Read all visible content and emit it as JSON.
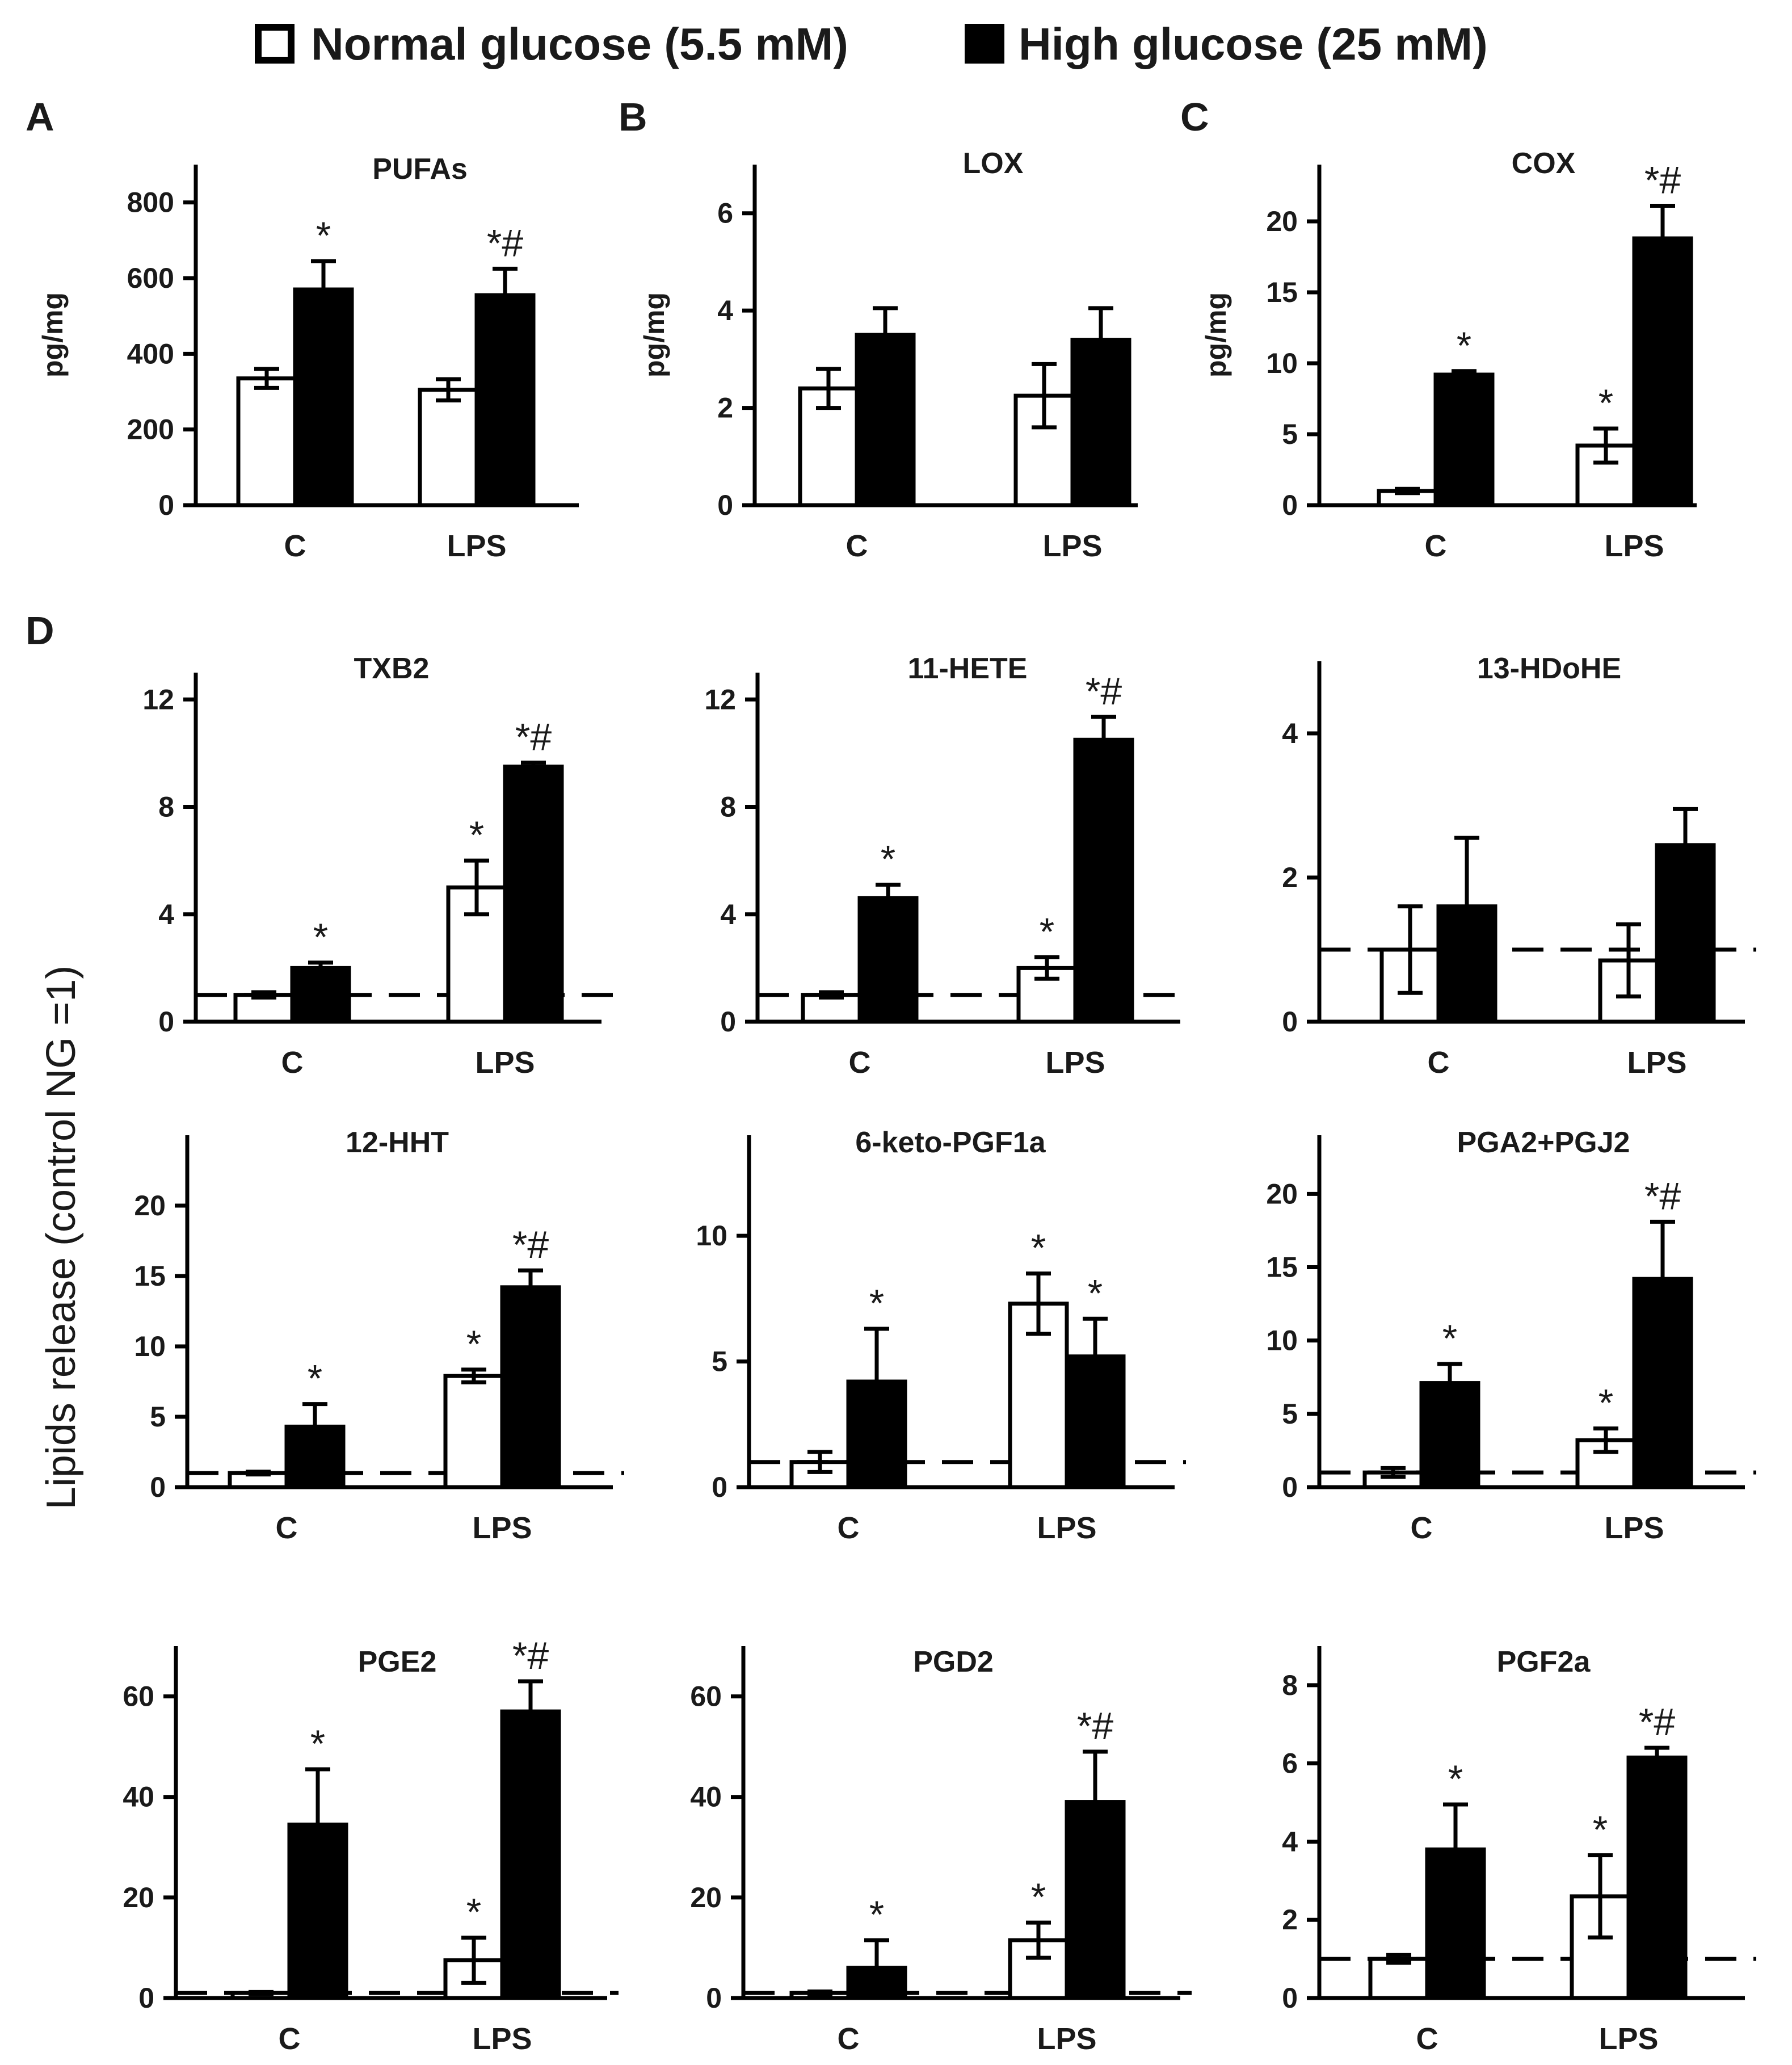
{
  "legend": {
    "normal_label": "Normal glucose (5.5 mM)",
    "high_label": "High glucose (25 mM)"
  },
  "colors": {
    "normal_fill": "#ffffff",
    "high_fill": "#000000",
    "stroke": "#000000"
  },
  "d_ylabel": "Lipids release (control NG =1)",
  "chart_data": [
    {
      "panel": "A",
      "type": "bar",
      "title": "PUFAs",
      "ylabel": "pg/mg",
      "ylim": [
        0,
        900
      ],
      "yticks": [
        0,
        200,
        400,
        600,
        800
      ],
      "baseline": null,
      "categories": [
        "C",
        "LPS"
      ],
      "series": [
        {
          "name": "Normal glucose (5.5 mM)",
          "values": [
            335,
            305
          ],
          "errors": [
            25,
            28
          ]
        },
        {
          "name": "High glucose (25 mM)",
          "values": [
            570,
            555
          ],
          "errors": [
            75,
            70
          ]
        }
      ],
      "annotations": [
        {
          "category": 0,
          "series": 1,
          "text": "*"
        },
        {
          "category": 1,
          "series": 1,
          "text": "*#"
        }
      ]
    },
    {
      "panel": "B",
      "type": "bar",
      "title": "LOX",
      "ylabel": "pg/mg",
      "ylim": [
        0,
        7
      ],
      "yticks": [
        0,
        2,
        4,
        6
      ],
      "baseline": null,
      "categories": [
        "C",
        "LPS"
      ],
      "series": [
        {
          "name": "Normal glucose (5.5 mM)",
          "values": [
            2.4,
            2.25
          ],
          "errors": [
            0.4,
            0.65
          ]
        },
        {
          "name": "High glucose (25 mM)",
          "values": [
            3.5,
            3.4
          ],
          "errors": [
            0.55,
            0.65
          ]
        }
      ],
      "annotations": []
    },
    {
      "panel": "C",
      "type": "bar",
      "title": "COX",
      "ylabel": "pg/mg",
      "ylim": [
        0,
        24
      ],
      "yticks": [
        0,
        5,
        10,
        15,
        20
      ],
      "baseline": null,
      "categories": [
        "C",
        "LPS"
      ],
      "series": [
        {
          "name": "Normal glucose (5.5 mM)",
          "values": [
            1.0,
            4.2
          ],
          "errors": [
            0.15,
            1.2
          ]
        },
        {
          "name": "High glucose (25 mM)",
          "values": [
            9.2,
            18.8
          ],
          "errors": [
            0.25,
            2.3
          ]
        }
      ],
      "annotations": [
        {
          "category": 0,
          "series": 1,
          "text": "*"
        },
        {
          "category": 1,
          "series": 0,
          "text": "*"
        },
        {
          "category": 1,
          "series": 1,
          "text": "*#"
        }
      ]
    },
    {
      "panel": "D",
      "type": "bar",
      "title": "TXB2",
      "ylabel": "",
      "ylim": [
        0,
        13
      ],
      "yticks": [
        0,
        4,
        8,
        12
      ],
      "baseline": 1,
      "categories": [
        "C",
        "LPS"
      ],
      "series": [
        {
          "name": "Normal glucose (5.5 mM)",
          "values": [
            1.0,
            5.0
          ],
          "errors": [
            0.1,
            1.0
          ]
        },
        {
          "name": "High glucose (25 mM)",
          "values": [
            2.0,
            9.5
          ],
          "errors": [
            0.2,
            0.15
          ]
        }
      ],
      "annotations": [
        {
          "category": 0,
          "series": 1,
          "text": "*"
        },
        {
          "category": 1,
          "series": 0,
          "text": "*"
        },
        {
          "category": 1,
          "series": 1,
          "text": "*#"
        }
      ]
    },
    {
      "panel": "",
      "type": "bar",
      "title": "11-HETE",
      "ylabel": "",
      "ylim": [
        0,
        13
      ],
      "yticks": [
        0,
        4,
        8,
        12
      ],
      "baseline": 1,
      "categories": [
        "C",
        "LPS"
      ],
      "series": [
        {
          "name": "Normal glucose (5.5 mM)",
          "values": [
            1.0,
            2.0
          ],
          "errors": [
            0.1,
            0.4
          ]
        },
        {
          "name": "High glucose (25 mM)",
          "values": [
            4.6,
            10.5
          ],
          "errors": [
            0.5,
            0.85
          ]
        }
      ],
      "annotations": [
        {
          "category": 0,
          "series": 1,
          "text": "*"
        },
        {
          "category": 1,
          "series": 0,
          "text": "*"
        },
        {
          "category": 1,
          "series": 1,
          "text": "*#"
        }
      ]
    },
    {
      "panel": "",
      "type": "bar",
      "title": "13-HDoHE",
      "ylabel": "",
      "ylim": [
        0,
        5
      ],
      "yticks": [
        0,
        2,
        4
      ],
      "baseline": 1,
      "categories": [
        "C",
        "LPS"
      ],
      "series": [
        {
          "name": "Normal glucose (5.5 mM)",
          "values": [
            1.0,
            0.85
          ],
          "errors": [
            0.6,
            0.5
          ]
        },
        {
          "name": "High glucose (25 mM)",
          "values": [
            1.6,
            2.45
          ],
          "errors": [
            0.95,
            0.5
          ]
        }
      ],
      "annotations": []
    },
    {
      "panel": "",
      "type": "bar",
      "title": "12-HHT",
      "ylabel": "",
      "ylim": [
        0,
        25
      ],
      "yticks": [
        0,
        5,
        10,
        15,
        20
      ],
      "baseline": 1,
      "categories": [
        "C",
        "LPS"
      ],
      "series": [
        {
          "name": "Normal glucose (5.5 mM)",
          "values": [
            1.0,
            7.9
          ],
          "errors": [
            0.1,
            0.45
          ]
        },
        {
          "name": "High glucose (25 mM)",
          "values": [
            4.3,
            14.2
          ],
          "errors": [
            1.6,
            1.2
          ]
        }
      ],
      "annotations": [
        {
          "category": 0,
          "series": 1,
          "text": "*"
        },
        {
          "category": 1,
          "series": 0,
          "text": "*"
        },
        {
          "category": 1,
          "series": 1,
          "text": "*#"
        }
      ]
    },
    {
      "panel": "",
      "type": "bar",
      "title": "6-keto-PGF1a",
      "ylabel": "",
      "ylim": [
        0,
        14
      ],
      "yticks": [
        0,
        5,
        10
      ],
      "baseline": 1,
      "categories": [
        "C",
        "LPS"
      ],
      "series": [
        {
          "name": "Normal glucose (5.5 mM)",
          "values": [
            1.0,
            7.3
          ],
          "errors": [
            0.4,
            1.2
          ]
        },
        {
          "name": "High glucose (25 mM)",
          "values": [
            4.2,
            5.2
          ],
          "errors": [
            2.1,
            1.5
          ]
        }
      ],
      "annotations": [
        {
          "category": 0,
          "series": 1,
          "text": "*"
        },
        {
          "category": 1,
          "series": 0,
          "text": "*"
        },
        {
          "category": 1,
          "series": 1,
          "text": "*"
        }
      ]
    },
    {
      "panel": "",
      "type": "bar",
      "title": "PGA2+PGJ2",
      "ylabel": "",
      "ylim": [
        0,
        24
      ],
      "yticks": [
        0,
        5,
        10,
        15,
        20
      ],
      "baseline": 1,
      "categories": [
        "C",
        "LPS"
      ],
      "series": [
        {
          "name": "Normal glucose (5.5 mM)",
          "values": [
            1.0,
            3.2
          ],
          "errors": [
            0.3,
            0.8
          ]
        },
        {
          "name": "High glucose (25 mM)",
          "values": [
            7.1,
            14.2
          ],
          "errors": [
            1.3,
            3.9
          ]
        }
      ],
      "annotations": [
        {
          "category": 0,
          "series": 1,
          "text": "*"
        },
        {
          "category": 1,
          "series": 0,
          "text": "*"
        },
        {
          "category": 1,
          "series": 1,
          "text": "*#"
        }
      ]
    },
    {
      "panel": "",
      "type": "bar",
      "title": "PGE2",
      "ylabel": "",
      "ylim": [
        0,
        70
      ],
      "yticks": [
        0,
        20,
        40,
        60
      ],
      "baseline": 1,
      "categories": [
        "C",
        "LPS"
      ],
      "series": [
        {
          "name": "Normal glucose (5.5 mM)",
          "values": [
            1.0,
            7.5
          ],
          "errors": [
            0.2,
            4.5
          ]
        },
        {
          "name": "High glucose (25 mM)",
          "values": [
            34.5,
            57.0
          ],
          "errors": [
            11.0,
            6.0
          ]
        }
      ],
      "annotations": [
        {
          "category": 0,
          "series": 1,
          "text": "*"
        },
        {
          "category": 1,
          "series": 0,
          "text": "*"
        },
        {
          "category": 1,
          "series": 1,
          "text": "*#"
        }
      ]
    },
    {
      "panel": "",
      "type": "bar",
      "title": "PGD2",
      "ylabel": "",
      "ylim": [
        0,
        70
      ],
      "yticks": [
        0,
        20,
        40,
        60
      ],
      "baseline": 1,
      "categories": [
        "C",
        "LPS"
      ],
      "series": [
        {
          "name": "Normal glucose (5.5 mM)",
          "values": [
            1.0,
            11.5
          ],
          "errors": [
            0.3,
            3.5
          ]
        },
        {
          "name": "High glucose (25 mM)",
          "values": [
            6.0,
            39.0
          ],
          "errors": [
            5.5,
            10.0
          ]
        }
      ],
      "annotations": [
        {
          "category": 0,
          "series": 1,
          "text": "*"
        },
        {
          "category": 1,
          "series": 0,
          "text": "*"
        },
        {
          "category": 1,
          "series": 1,
          "text": "*#"
        }
      ]
    },
    {
      "panel": "",
      "type": "bar",
      "title": "PGF2a",
      "ylabel": "",
      "ylim": [
        0,
        9
      ],
      "yticks": [
        0,
        2,
        4,
        6,
        8
      ],
      "baseline": 1,
      "categories": [
        "C",
        "LPS"
      ],
      "series": [
        {
          "name": "Normal glucose (5.5 mM)",
          "values": [
            1.0,
            2.6
          ],
          "errors": [
            0.1,
            1.05
          ]
        },
        {
          "name": "High glucose (25 mM)",
          "values": [
            3.8,
            6.15
          ],
          "errors": [
            1.15,
            0.25
          ]
        }
      ],
      "annotations": [
        {
          "category": 0,
          "series": 1,
          "text": "*"
        },
        {
          "category": 1,
          "series": 0,
          "text": "*"
        },
        {
          "category": 1,
          "series": 1,
          "text": "*#"
        }
      ]
    }
  ]
}
